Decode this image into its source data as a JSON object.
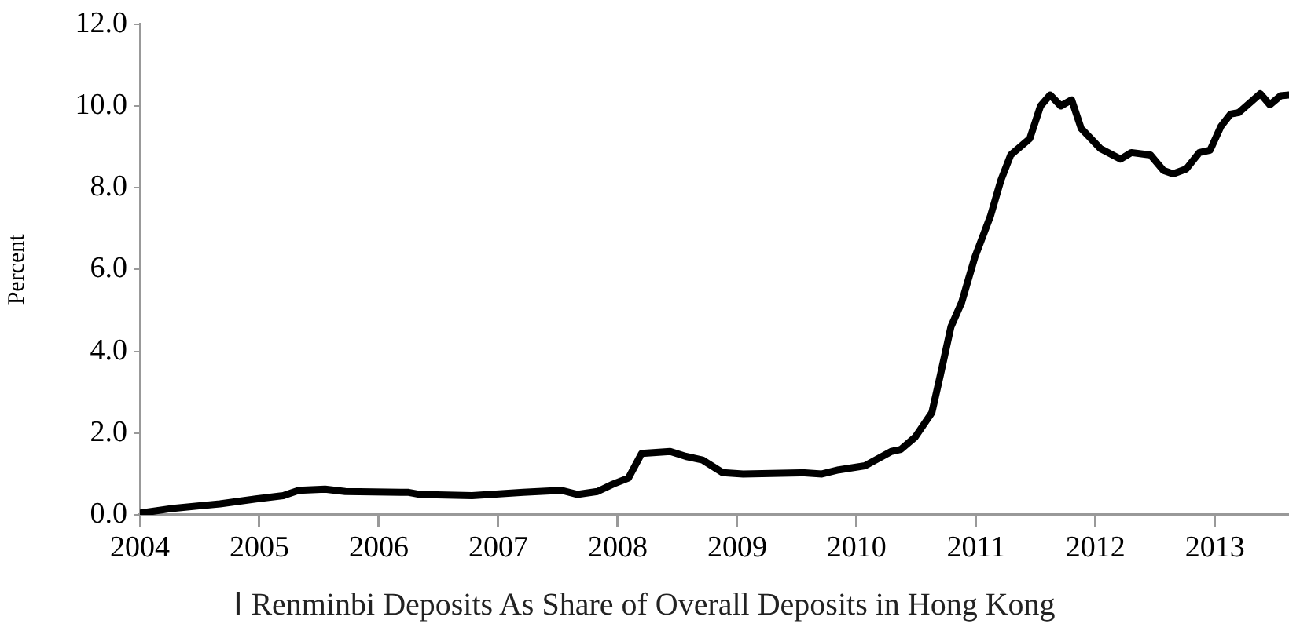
{
  "chart_data": {
    "type": "line",
    "title": "Ⅰ Renminbi Deposits As Share of Overall Deposits in Hong Kong",
    "ylabel": "Percent",
    "x": [
      2004.0,
      2004.28,
      2004.67,
      2004.97,
      2005.2,
      2005.33,
      2005.55,
      2005.72,
      2006.25,
      2006.34,
      2006.78,
      2007.21,
      2007.53,
      2007.66,
      2007.83,
      2007.96,
      2008.09,
      2008.2,
      2008.44,
      2008.57,
      2008.71,
      2008.88,
      2009.05,
      2009.54,
      2009.71,
      2009.85,
      2010.07,
      2010.29,
      2010.37,
      2010.49,
      2010.63,
      2010.7,
      2010.79,
      2010.88,
      2010.99,
      2011.12,
      2011.21,
      2011.29,
      2011.45,
      2011.54,
      2011.62,
      2011.71,
      2011.8,
      2011.88,
      2012.04,
      2012.21,
      2012.3,
      2012.46,
      2012.57,
      2012.65,
      2012.76,
      2012.87,
      2012.96,
      2013.05,
      2013.13,
      2013.2,
      2013.38,
      2013.46,
      2013.55,
      2013.62
    ],
    "series": [
      {
        "color": "#000000",
        "values": [
          0.04,
          0.16,
          0.27,
          0.39,
          0.47,
          0.6,
          0.63,
          0.57,
          0.55,
          0.5,
          0.47,
          0.55,
          0.6,
          0.5,
          0.57,
          0.75,
          0.9,
          1.5,
          1.55,
          1.43,
          1.34,
          1.03,
          1.0,
          1.03,
          1.0,
          1.1,
          1.2,
          1.55,
          1.6,
          1.9,
          2.5,
          3.4,
          4.6,
          5.2,
          6.3,
          7.3,
          8.2,
          8.8,
          9.2,
          10.0,
          10.27,
          10.0,
          10.15,
          9.45,
          8.96,
          8.7,
          8.86,
          8.8,
          8.42,
          8.34,
          8.46,
          8.86,
          8.92,
          9.5,
          9.8,
          9.84,
          10.3,
          10.03,
          10.25,
          10.27
        ]
      }
    ],
    "xlim": [
      2004,
      2013.62
    ],
    "xticks": [
      2004,
      2005,
      2006,
      2007,
      2008,
      2009,
      2010,
      2011,
      2012,
      2013
    ],
    "ylim": [
      0,
      12
    ],
    "yticks": [
      {
        "value": 0,
        "label": "0.0"
      },
      {
        "value": 2,
        "label": "2.0"
      },
      {
        "value": 4,
        "label": "4.0"
      },
      {
        "value": 6,
        "label": "6.0"
      },
      {
        "value": 8,
        "label": "8.0"
      },
      {
        "value": 10,
        "label": "10.0"
      },
      {
        "value": 12,
        "label": "12.0"
      }
    ],
    "grid": false,
    "legend": false,
    "marker": "none",
    "line_style": "solid"
  }
}
